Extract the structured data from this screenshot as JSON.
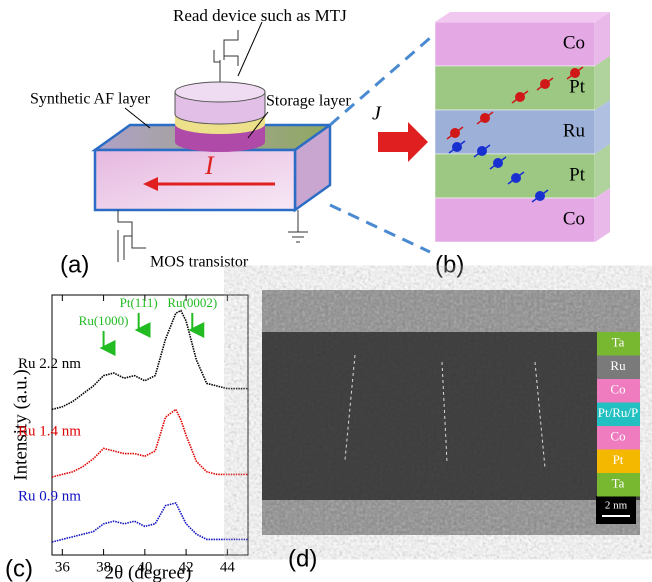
{
  "panel_a": {
    "label": "(a)",
    "read_device": "Read device such as MTJ",
    "af_layer": "Synthetic AF layer",
    "storage_layer": "Storage layer",
    "current": "I",
    "transistor": "MOS transistor"
  },
  "panel_b": {
    "label": "(b)",
    "current": "J",
    "layers": [
      "Co",
      "Pt",
      "Ru",
      "Pt",
      "Co"
    ]
  },
  "chart_data": {
    "type": "line",
    "panel_label": "(c)",
    "x_label": "2θ (degree)",
    "y_label": "Intensity (a.u.)",
    "x": [
      35.5,
      36,
      36.5,
      37,
      37.5,
      38,
      38.5,
      39,
      39.5,
      40,
      40.5,
      41,
      41.5,
      41.75,
      42,
      42.5,
      43,
      43.5,
      44,
      44.5,
      45
    ],
    "series": [
      {
        "name": "Ru 2.2 nm",
        "color": "#000000",
        "values": [
          5.6,
          5.7,
          5.9,
          6.2,
          6.5,
          6.9,
          7.0,
          6.8,
          6.9,
          6.7,
          6.9,
          8.3,
          9.3,
          9.4,
          9.0,
          7.5,
          6.6,
          6.5,
          6.4,
          6.4,
          6.4
        ]
      },
      {
        "name": "Ru 1.4 nm",
        "color": "#e00000",
        "values": [
          3.0,
          3.1,
          3.2,
          3.4,
          3.7,
          4.1,
          4.0,
          3.9,
          3.9,
          3.8,
          4.0,
          5.3,
          5.6,
          5.2,
          4.6,
          3.6,
          3.2,
          3.1,
          3.1,
          3.1,
          3.1
        ]
      },
      {
        "name": "Ru 0.9 nm",
        "color": "#1010c0",
        "values": [
          0.5,
          0.6,
          0.7,
          0.8,
          0.9,
          1.2,
          1.3,
          1.2,
          1.3,
          1.1,
          1.2,
          1.9,
          2.0,
          1.6,
          1.2,
          0.8,
          0.6,
          0.6,
          0.6,
          0.6,
          0.6
        ]
      }
    ],
    "annotations": [
      {
        "text": "Ru(1000)",
        "x": 38
      },
      {
        "text": "Pt(111)",
        "x": 39.7
      },
      {
        "text": "Ru(0002)",
        "x": 42.3
      }
    ],
    "annotation_color": "#22bb22",
    "xlim": [
      35.5,
      45
    ],
    "xticks": [
      36,
      38,
      40,
      42,
      44
    ],
    "ylim": [
      0,
      10
    ]
  },
  "panel_d": {
    "label": "(d)",
    "scale_bar": "2 nm",
    "layers": [
      {
        "name": "Ta",
        "color": "#78b830"
      },
      {
        "name": "Ru",
        "color": "#7a7a7a"
      },
      {
        "name": "Co",
        "color": "#f07cc0"
      },
      {
        "name": "Pt/Ru/P",
        "color": "#22c0c0"
      },
      {
        "name": "Co",
        "color": "#f07cc0"
      },
      {
        "name": "Pt",
        "color": "#f5b800"
      },
      {
        "name": "Ta",
        "color": "#78b830"
      }
    ]
  }
}
